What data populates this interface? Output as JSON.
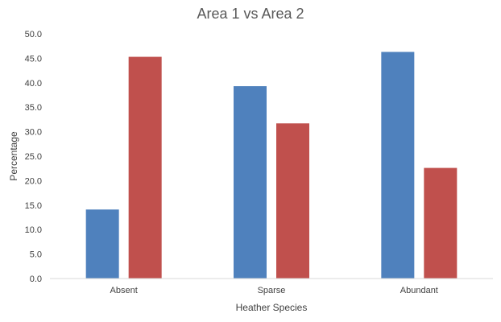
{
  "chart_data": {
    "type": "bar",
    "title": "Area 1 vs Area 2",
    "xlabel": "Heather Species",
    "ylabel": "Percentage",
    "categories": [
      "Absent",
      "Sparse",
      "Abundant"
    ],
    "series": [
      {
        "values": [
          14.1,
          39.3,
          46.3
        ],
        "color": "#4F81BD"
      },
      {
        "values": [
          45.3,
          31.7,
          22.6
        ],
        "color": "#C0504D"
      }
    ],
    "ylim": [
      0,
      50
    ],
    "y_ticks": [
      "0.0",
      "5.0",
      "10.0",
      "15.0",
      "20.0",
      "25.0",
      "30.0",
      "35.0",
      "40.0",
      "45.0",
      "50.0"
    ],
    "grid": false,
    "legend": "none"
  }
}
